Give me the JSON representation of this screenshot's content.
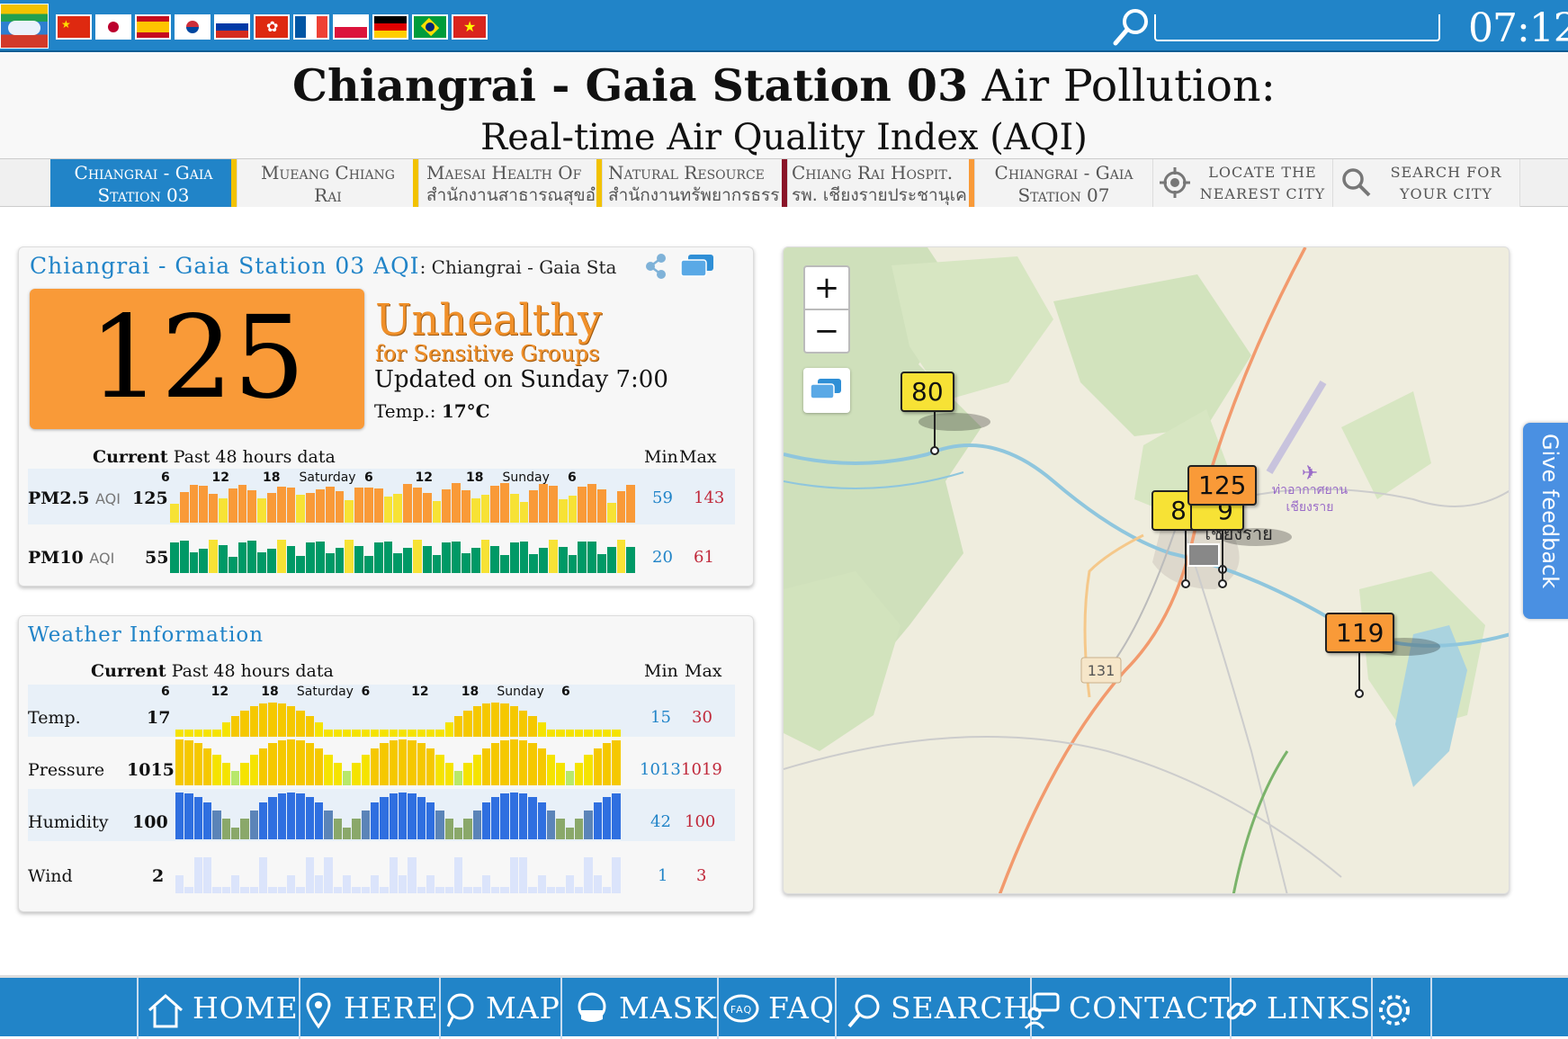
{
  "topbar": {
    "clock": "07:12",
    "search_placeholder": "",
    "flags": [
      "china",
      "japan",
      "spain",
      "korea",
      "russia",
      "hong-kong",
      "france",
      "poland",
      "germany",
      "brazil",
      "vietnam"
    ]
  },
  "title": {
    "bold": "Chiangrai - Gaia Station 03",
    "rest": " Air Pollution:",
    "subtitle": "Real-time Air Quality Index (AQI)"
  },
  "tabs": [
    {
      "line1": "Chiangrai - Gaia",
      "line2": "Station 03",
      "color": "#f2c200",
      "selected": true
    },
    {
      "line1": "Mueang Chiang",
      "line2": "Rai",
      "color": "#f2c200"
    },
    {
      "line1": "Maesai Health Of",
      "line2": "สำนักงานสาธารณสุขอำ",
      "color": "#f2c200"
    },
    {
      "line1": "Natural Resource",
      "line2": "สำนักงานทรัพยากรธรร",
      "color": "#8a1528"
    },
    {
      "line1": "Chiang Rai Hospit.",
      "line2": "รพ. เชียงรายประชานุเค",
      "color": "#f99a38"
    },
    {
      "line1": "Chiangrai - Gaia",
      "line2": "Station 07",
      "color": "#ddd"
    },
    {
      "line1": "Locate the",
      "line2": "nearest city"
    },
    {
      "line1": "Search for",
      "line2": "your city"
    }
  ],
  "aqi": {
    "title": "Chiangrai - Gaia Station 03 AQI",
    "title_suffix": ": Chiangrai - Gaia Sta",
    "value": "125",
    "level": "Unhealthy",
    "level_sub": "for Sensitive Groups",
    "updated": "Updated on Sunday 7:00",
    "temp_label": "Temp.: ",
    "temp_value": "17°C",
    "color": "#f99a38"
  },
  "table_header": {
    "current": "Current",
    "past": "Past 48 hours data",
    "min": "Min",
    "max": "Max"
  },
  "time_ticks": [
    "6",
    "12",
    "18",
    "Saturday",
    "6",
    "12",
    "18",
    "Sunday",
    "6"
  ],
  "pollutants": [
    {
      "name": "PM2.5",
      "unit": "AQI",
      "current": "125",
      "min": "59",
      "max": "143"
    },
    {
      "name": "PM10",
      "unit": "AQI",
      "current": "55",
      "min": "20",
      "max": "61"
    }
  ],
  "weather": {
    "title": "Weather Information",
    "rows": [
      {
        "name": "Temp.",
        "current": "17",
        "min": "15",
        "max": "30"
      },
      {
        "name": "Pressure",
        "current": "1015",
        "min": "1013",
        "max": "1019"
      },
      {
        "name": "Humidity",
        "current": "100",
        "min": "42",
        "max": "100"
      },
      {
        "name": "Wind",
        "current": "2",
        "min": "1",
        "max": "3"
      }
    ]
  },
  "map": {
    "zoom_in": "+",
    "zoom_out": "−",
    "markers": [
      {
        "value": "80",
        "color": "#f7e235"
      },
      {
        "value": "125",
        "color": "#f99a38"
      },
      {
        "value": "8",
        "color": "#f7e235"
      },
      {
        "value": "9",
        "color": "#f7e235"
      },
      {
        "value": "119",
        "color": "#f99a38"
      }
    ],
    "labels": {
      "city": "เชียงราย",
      "airport": "ท่าอากาศยาน",
      "airport2": "เชียงราย",
      "road": "131"
    }
  },
  "feedback": "Give feedback",
  "bottom_nav": [
    "HOME",
    "HERE",
    "MAP",
    "MASK",
    "FAQ",
    "SEARCH",
    "CONTACT",
    "LINKS"
  ],
  "colors": {
    "brand": "#2184c8",
    "good": "#009966",
    "moderate": "#f7e235",
    "usg": "#f99a38",
    "min": "#2184c8",
    "max": "#c0283a"
  }
}
